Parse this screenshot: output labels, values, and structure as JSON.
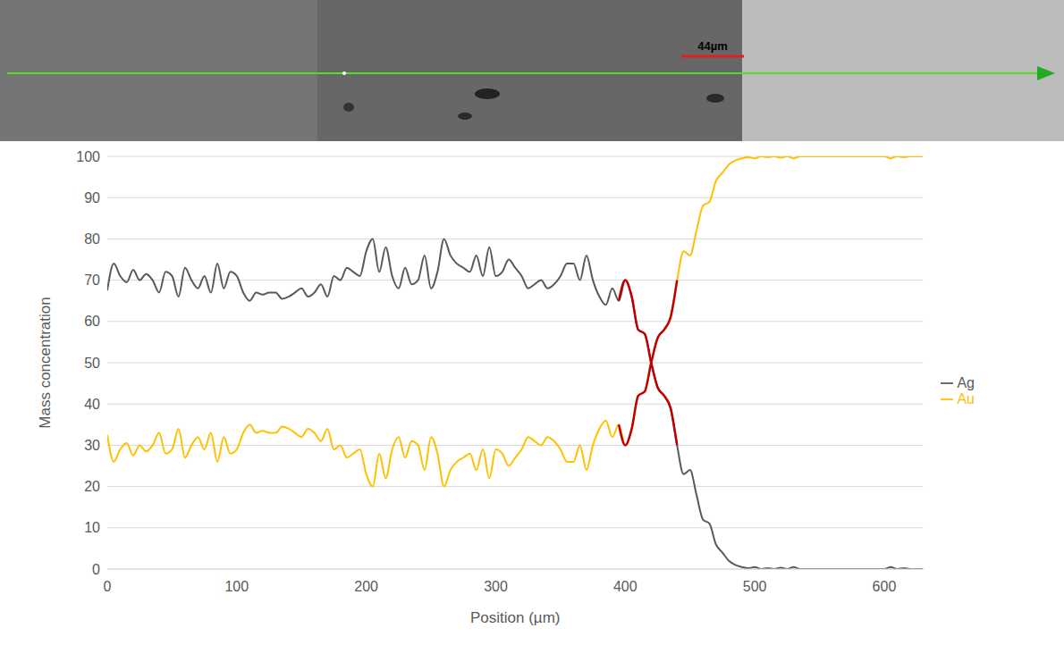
{
  "image": {
    "annotation": "44µm"
  },
  "chart_data": {
    "type": "line",
    "x_label": "Position (µm)",
    "y_label": "Mass concentration",
    "x": [
      0,
      5,
      10,
      15,
      20,
      25,
      30,
      35,
      40,
      45,
      50,
      55,
      60,
      65,
      70,
      75,
      80,
      85,
      90,
      95,
      100,
      105,
      110,
      115,
      120,
      125,
      130,
      135,
      140,
      145,
      150,
      155,
      160,
      165,
      170,
      175,
      180,
      185,
      190,
      195,
      200,
      205,
      210,
      215,
      220,
      225,
      230,
      235,
      240,
      245,
      250,
      255,
      260,
      265,
      270,
      275,
      280,
      285,
      290,
      295,
      300,
      305,
      310,
      315,
      320,
      325,
      330,
      335,
      340,
      345,
      350,
      355,
      360,
      365,
      370,
      375,
      380,
      385,
      390,
      395,
      400,
      405,
      410,
      415,
      420,
      425,
      430,
      435,
      440,
      445,
      450,
      455,
      460,
      465,
      470,
      475,
      480,
      485,
      490,
      495,
      500,
      505,
      510,
      515,
      520,
      525,
      530,
      535,
      540,
      545,
      550,
      555,
      560,
      565,
      570,
      575,
      580,
      585,
      590,
      595,
      600,
      605,
      610,
      615,
      620,
      625,
      630
    ],
    "series": [
      {
        "name": "Ag",
        "color": "#595959",
        "values": [
          67.5,
          74,
          71,
          69.5,
          72.5,
          70,
          71.5,
          70,
          67,
          72,
          71,
          66,
          73,
          70,
          68,
          71,
          67,
          74,
          68,
          72,
          71,
          67,
          65,
          67,
          66.5,
          67,
          67,
          65.5,
          66,
          67,
          68,
          66,
          67,
          69,
          66,
          71,
          70,
          73,
          72,
          71,
          77,
          80,
          72,
          78,
          71,
          68,
          73,
          69,
          70,
          76,
          68,
          72,
          80,
          76,
          74,
          73,
          72,
          76,
          71,
          78,
          71,
          72,
          75,
          73,
          71,
          68,
          69,
          70,
          68,
          69,
          71,
          74,
          74,
          70,
          76,
          70,
          66,
          64,
          68,
          65,
          70,
          66,
          58,
          57,
          50,
          44,
          42,
          39,
          30,
          23,
          24,
          18,
          12,
          11,
          6,
          4,
          2,
          1,
          0.5,
          0.2,
          0.5,
          0,
          0.2,
          0,
          0.3,
          0,
          0.5,
          0,
          0,
          0,
          0,
          0,
          0,
          0,
          0,
          0,
          0,
          0,
          0,
          0,
          0,
          0.5,
          0,
          0.2,
          0,
          0,
          0
        ]
      },
      {
        "name": "Au",
        "color": "#ffc000",
        "values": [
          32.5,
          26,
          29,
          30.5,
          27.5,
          30,
          28.5,
          30,
          33,
          28,
          29,
          34,
          27,
          30,
          32,
          29,
          33,
          26,
          32,
          28,
          29,
          33,
          35,
          33,
          33.5,
          33,
          33,
          34.5,
          34,
          33,
          32,
          34,
          33,
          31,
          34,
          29,
          30,
          27,
          28,
          29,
          23,
          20,
          28,
          22,
          29,
          32,
          27,
          31,
          30,
          24,
          32,
          28,
          20,
          24,
          26,
          27,
          28,
          24,
          29,
          22,
          29,
          28,
          25,
          27,
          29,
          32,
          31,
          30,
          32,
          31,
          29,
          26,
          26,
          30,
          24,
          30,
          34,
          36,
          32,
          35,
          30,
          34,
          42,
          43,
          50,
          56,
          58,
          61,
          70,
          77,
          76,
          82,
          88,
          89,
          94,
          96,
          98,
          99,
          99.5,
          99.8,
          99.5,
          100,
          99.8,
          100,
          99.7,
          100,
          99.5,
          100,
          100,
          100,
          100,
          100,
          100,
          100,
          100,
          100,
          100,
          100,
          100,
          100,
          100,
          99.5,
          100,
          99.8,
          100,
          100,
          100
        ]
      }
    ],
    "highlight": {
      "x_range": [
        395,
        440
      ],
      "color": "#c00000"
    },
    "xlim": [
      0,
      630
    ],
    "xticks": [
      0,
      100,
      200,
      300,
      400,
      500,
      600
    ],
    "ylim": [
      0,
      100
    ],
    "yticks": [
      0,
      10,
      20,
      30,
      40,
      50,
      60,
      70,
      80,
      90,
      100
    ],
    "grid": true,
    "legend": "right"
  }
}
